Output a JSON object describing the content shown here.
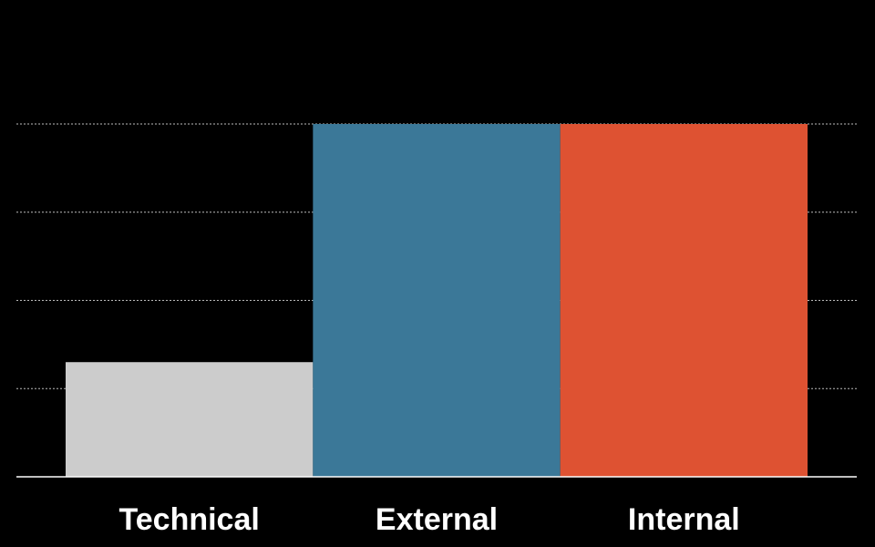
{
  "chart_data": {
    "type": "bar",
    "categories": [
      "Technical",
      "External",
      "Internal"
    ],
    "values": [
      1.3,
      4,
      4
    ],
    "colors": [
      "#cccccc",
      "#3b7898",
      "#de5232"
    ],
    "ylim": [
      0,
      4
    ],
    "yticks": [
      1,
      2,
      3,
      4
    ],
    "grid": true
  }
}
